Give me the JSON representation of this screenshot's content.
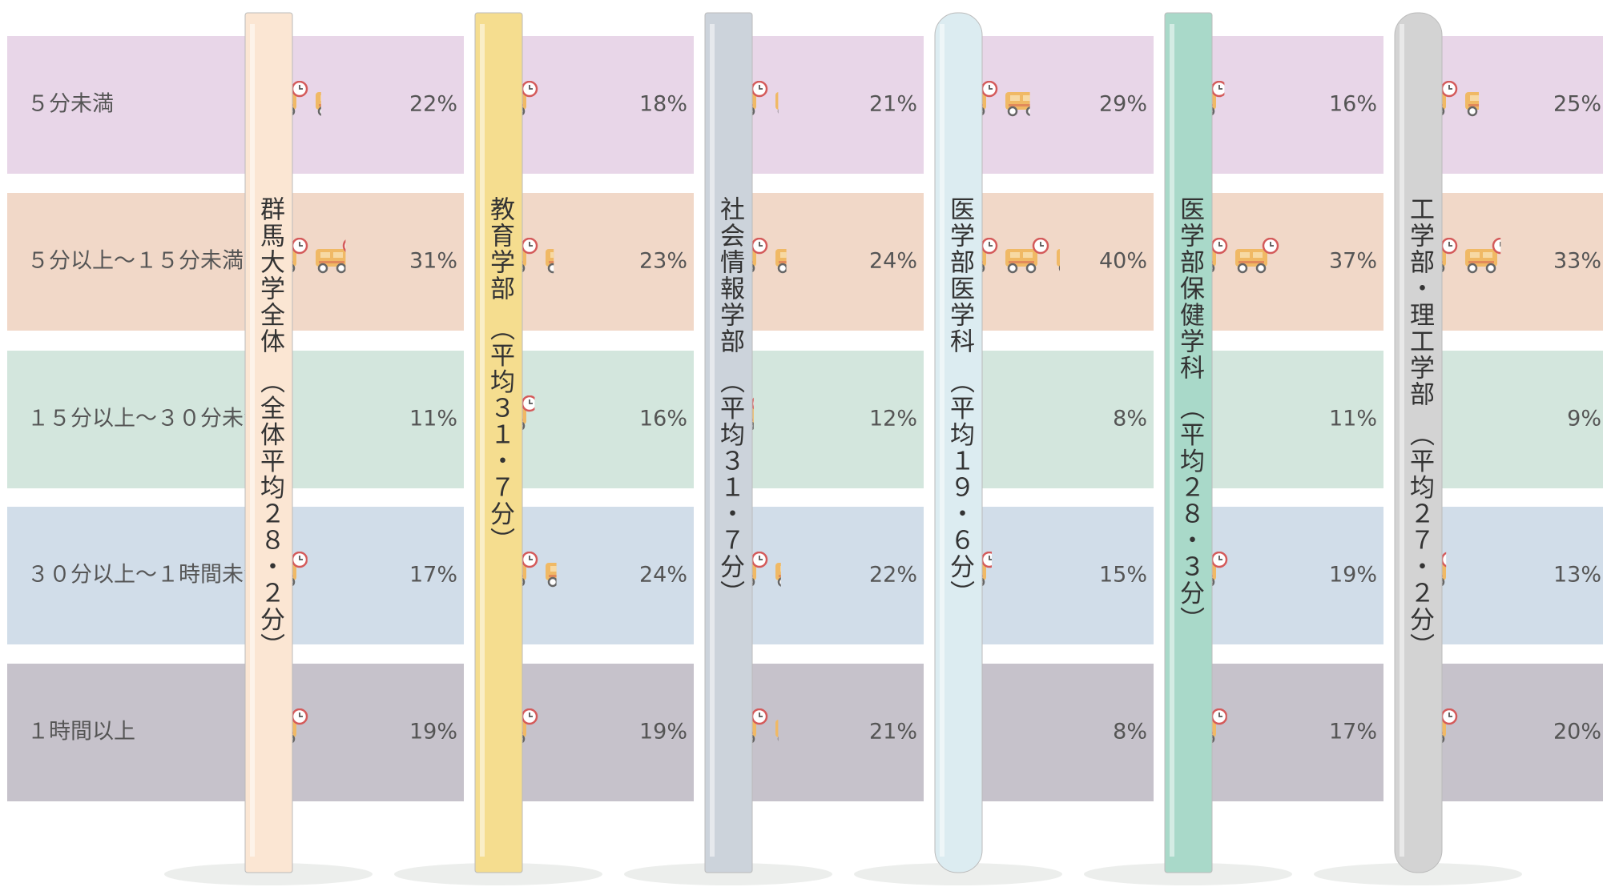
{
  "chart_data": {
    "type": "pictogram",
    "categories": [
      "５分未満",
      "５分以上～１５分未満",
      "１５分以上～３０分未満",
      "３０分以上～１時間未満",
      "１時間以上"
    ],
    "row_colors": [
      "#e8d6e8",
      "#f1d8c8",
      "#d3e6dd",
      "#d1dde9",
      "#c6c2cb"
    ],
    "series": [
      {
        "name": "群馬大学全体　（全体平均２８・２分）",
        "color": "#fbe6d3",
        "values": [
          22,
          31,
          11,
          17,
          19
        ],
        "value_labels": [
          "22%",
          "31%",
          "11%",
          "17%",
          "19%"
        ]
      },
      {
        "name": "教育学部　（平均３１・７分）",
        "color": "#f5dd8f",
        "values": [
          18,
          23,
          16,
          24,
          19
        ],
        "value_labels": [
          "18%",
          "23%",
          "16%",
          "24%",
          "19%"
        ]
      },
      {
        "name": "社会情報学部　（平均３１・７分）",
        "color": "#ccd3db",
        "values": [
          21,
          24,
          12,
          22,
          21
        ],
        "value_labels": [
          "21%",
          "24%",
          "12%",
          "22%",
          "21%"
        ]
      },
      {
        "name": "医学部医学科　（平均１９・６分）",
        "color": "#dcecf1",
        "values": [
          29,
          40,
          8,
          15,
          8
        ],
        "value_labels": [
          "29%",
          "40%",
          "8%",
          "15%",
          "8%"
        ]
      },
      {
        "name": "医学部保健学科　（平均２８・３分）",
        "color": "#a9d9c9",
        "values": [
          16,
          37,
          11,
          19,
          17
        ],
        "value_labels": [
          "16%",
          "37%",
          "11%",
          "19%",
          "17%"
        ]
      },
      {
        "name": "工学部・理工学部　（平均２７・２分）",
        "color": "#d3d3d3",
        "values": [
          25,
          33,
          9,
          13,
          20
        ],
        "value_labels": [
          "25%",
          "33%",
          "9%",
          "13%",
          "20%"
        ]
      }
    ]
  }
}
